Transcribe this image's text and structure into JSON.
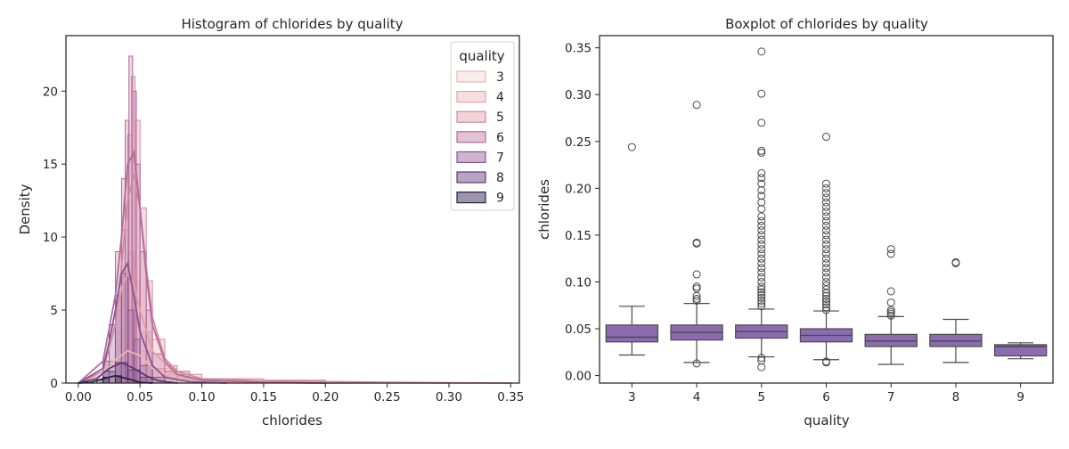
{
  "chart_data": [
    {
      "type": "histogram",
      "title": "Histogram of chlorides by quality",
      "xlabel": "chlorides",
      "ylabel": "Density",
      "xlim": [
        -0.01,
        0.357
      ],
      "ylim": [
        0,
        23.8
      ],
      "xticks": [
        0.0,
        0.05,
        0.1,
        0.15,
        0.2,
        0.25,
        0.3,
        0.35
      ],
      "xtick_labels": [
        "0.00",
        "0.05",
        "0.10",
        "0.15",
        "0.20",
        "0.25",
        "0.30",
        "0.35"
      ],
      "yticks": [
        0,
        5,
        10,
        15,
        20
      ],
      "ytick_labels": [
        "0",
        "5",
        "10",
        "15",
        "20"
      ],
      "legend_title": "quality",
      "legend_position": "top-right",
      "series": [
        {
          "name": "3",
          "color": "#f3dcd6",
          "edge": "#e8b7ad",
          "bins": [
            [
              0.02,
              0.03,
              1.2
            ],
            [
              0.03,
              0.04,
              3.5
            ],
            [
              0.04,
              0.05,
              4.0
            ],
            [
              0.05,
              0.06,
              2.2
            ],
            [
              0.06,
              0.07,
              1.0
            ],
            [
              0.07,
              0.08,
              0.6
            ]
          ],
          "kde_x": [
            0.0,
            0.02,
            0.03,
            0.04,
            0.05,
            0.06,
            0.08,
            0.12,
            0.2,
            0.25,
            0.3
          ],
          "kde_y": [
            0,
            0.6,
            1.6,
            2.2,
            1.9,
            1.0,
            0.3,
            0.05,
            0,
            0.02,
            0
          ]
        },
        {
          "name": "4",
          "color": "#ecc1c0",
          "edge": "#e2a2a5",
          "bins": [
            [
              0.02,
              0.03,
              1.5
            ],
            [
              0.03,
              0.035,
              5.0
            ],
            [
              0.035,
              0.04,
              8.0
            ],
            [
              0.04,
              0.045,
              9.0
            ],
            [
              0.045,
              0.05,
              7.0
            ],
            [
              0.05,
              0.06,
              3.5
            ],
            [
              0.06,
              0.08,
              1.0
            ],
            [
              0.08,
              0.1,
              0.3
            ]
          ],
          "kde_x": [
            0.0,
            0.02,
            0.03,
            0.035,
            0.04,
            0.045,
            0.05,
            0.06,
            0.08,
            0.1,
            0.15,
            0.2
          ],
          "kde_y": [
            0,
            1.0,
            4.0,
            6.5,
            7.5,
            6.8,
            5.0,
            2.2,
            0.5,
            0.2,
            0.05,
            0
          ]
        },
        {
          "name": "5",
          "color": "#e3a8b4",
          "edge": "#d48a9c",
          "bins": [
            [
              0.035,
              0.04,
              10.5
            ],
            [
              0.04,
              0.043,
              17.0
            ],
            [
              0.043,
              0.046,
              21.0
            ],
            [
              0.046,
              0.05,
              18.0
            ],
            [
              0.05,
              0.055,
              12.0
            ],
            [
              0.055,
              0.06,
              7.0
            ],
            [
              0.06,
              0.07,
              3.0
            ],
            [
              0.07,
              0.08,
              1.2
            ],
            [
              0.08,
              0.1,
              0.6
            ],
            [
              0.1,
              0.15,
              0.3
            ],
            [
              0.15,
              0.2,
              0.2
            ]
          ],
          "kde_x": [
            0.0,
            0.02,
            0.03,
            0.035,
            0.04,
            0.045,
            0.05,
            0.055,
            0.06,
            0.07,
            0.08,
            0.1,
            0.15,
            0.2,
            0.25,
            0.3,
            0.35
          ],
          "kde_y": [
            0,
            0.8,
            4.0,
            8.0,
            12.5,
            14.3,
            12.0,
            8.0,
            4.5,
            1.7,
            0.8,
            0.3,
            0.15,
            0.1,
            0.05,
            0.02,
            0
          ]
        },
        {
          "name": "6",
          "color": "#c986ad",
          "edge": "#b46a9c",
          "bins": [
            [
              0.03,
              0.035,
              9.0
            ],
            [
              0.035,
              0.038,
              14.0
            ],
            [
              0.038,
              0.041,
              18.0
            ],
            [
              0.041,
              0.044,
              22.4
            ],
            [
              0.044,
              0.047,
              20.0
            ],
            [
              0.047,
              0.05,
              15.0
            ],
            [
              0.05,
              0.055,
              9.0
            ],
            [
              0.055,
              0.06,
              5.0
            ],
            [
              0.06,
              0.07,
              2.0
            ],
            [
              0.07,
              0.09,
              0.8
            ]
          ],
          "kde_x": [
            0.0,
            0.02,
            0.03,
            0.035,
            0.04,
            0.045,
            0.05,
            0.055,
            0.06,
            0.07,
            0.08,
            0.1,
            0.15,
            0.2
          ],
          "kde_y": [
            0,
            1.5,
            6.0,
            10.0,
            15.0,
            15.8,
            12.0,
            7.5,
            4.0,
            1.5,
            0.6,
            0.2,
            0.05,
            0
          ]
        },
        {
          "name": "7",
          "color": "#a06aa6",
          "edge": "#8a5596",
          "bins": [
            [
              0.02,
              0.025,
              1.5
            ],
            [
              0.025,
              0.03,
              4.0
            ],
            [
              0.03,
              0.035,
              6.0
            ],
            [
              0.035,
              0.04,
              7.5
            ],
            [
              0.04,
              0.045,
              5.0
            ],
            [
              0.045,
              0.05,
              3.0
            ],
            [
              0.05,
              0.06,
              1.2
            ],
            [
              0.06,
              0.07,
              0.4
            ]
          ],
          "kde_x": [
            0.0,
            0.02,
            0.025,
            0.03,
            0.035,
            0.04,
            0.045,
            0.05,
            0.06,
            0.07,
            0.09,
            0.12
          ],
          "kde_y": [
            0,
            1.0,
            2.8,
            5.0,
            7.5,
            8.2,
            6.0,
            3.5,
            1.2,
            0.4,
            0.1,
            0
          ]
        },
        {
          "name": "8",
          "color": "#6d4a86",
          "edge": "#5a3b74",
          "bins": [
            [
              0.02,
              0.03,
              0.8
            ],
            [
              0.03,
              0.04,
              1.4
            ],
            [
              0.04,
              0.05,
              0.9
            ],
            [
              0.05,
              0.06,
              0.4
            ]
          ],
          "kde_x": [
            0.0,
            0.015,
            0.025,
            0.035,
            0.045,
            0.055,
            0.065,
            0.08
          ],
          "kde_y": [
            0,
            0.3,
            1.0,
            1.4,
            1.0,
            0.5,
            0.15,
            0
          ]
        },
        {
          "name": "9",
          "color": "#3a2a56",
          "edge": "#2d2044",
          "bins": [
            [
              0.015,
              0.02,
              0.2
            ],
            [
              0.02,
              0.025,
              0.4
            ],
            [
              0.03,
              0.035,
              0.5
            ]
          ],
          "kde_x": [
            0.0,
            0.01,
            0.02,
            0.03,
            0.04,
            0.05,
            0.06
          ],
          "kde_y": [
            0,
            0.05,
            0.3,
            0.5,
            0.3,
            0.05,
            0
          ]
        }
      ]
    },
    {
      "type": "box",
      "title": "Boxplot of chlorides by quality",
      "xlabel": "quality",
      "ylabel": "chlorides",
      "ylim": [
        -0.008,
        0.363
      ],
      "yticks": [
        0.0,
        0.05,
        0.1,
        0.15,
        0.2,
        0.25,
        0.3,
        0.35
      ],
      "ytick_labels": [
        "0.00",
        "0.05",
        "0.10",
        "0.15",
        "0.20",
        "0.25",
        "0.30",
        "0.35"
      ],
      "categories": [
        "3",
        "4",
        "5",
        "6",
        "7",
        "8",
        "9"
      ],
      "box_color": "#8c6bb1",
      "boxes": [
        {
          "q1": 0.036,
          "median": 0.041,
          "q3": 0.054,
          "whislo": 0.022,
          "whishi": 0.074,
          "fliers": [
            0.244
          ]
        },
        {
          "q1": 0.038,
          "median": 0.046,
          "q3": 0.054,
          "whislo": 0.014,
          "whishi": 0.077,
          "fliers": [
            0.013,
            0.08,
            0.082,
            0.085,
            0.093,
            0.095,
            0.108,
            0.141,
            0.142,
            0.289
          ]
        },
        {
          "q1": 0.04,
          "median": 0.047,
          "q3": 0.054,
          "whislo": 0.02,
          "whishi": 0.071,
          "fliers": [
            0.009,
            0.016,
            0.019,
            0.074,
            0.077,
            0.08,
            0.083,
            0.086,
            0.089,
            0.092,
            0.095,
            0.1,
            0.105,
            0.11,
            0.115,
            0.12,
            0.125,
            0.13,
            0.135,
            0.14,
            0.145,
            0.15,
            0.155,
            0.16,
            0.165,
            0.17,
            0.178,
            0.185,
            0.192,
            0.198,
            0.205,
            0.211,
            0.216,
            0.238,
            0.24,
            0.27,
            0.301,
            0.346
          ]
        },
        {
          "q1": 0.036,
          "median": 0.043,
          "q3": 0.05,
          "whislo": 0.017,
          "whishi": 0.069,
          "fliers": [
            0.014,
            0.015,
            0.07,
            0.073,
            0.076,
            0.079,
            0.082,
            0.085,
            0.088,
            0.092,
            0.096,
            0.1,
            0.105,
            0.11,
            0.115,
            0.12,
            0.125,
            0.13,
            0.135,
            0.14,
            0.145,
            0.15,
            0.155,
            0.16,
            0.165,
            0.17,
            0.175,
            0.18,
            0.185,
            0.19,
            0.195,
            0.2,
            0.205,
            0.255
          ]
        },
        {
          "q1": 0.031,
          "median": 0.037,
          "q3": 0.044,
          "whislo": 0.012,
          "whishi": 0.063,
          "fliers": [
            0.064,
            0.066,
            0.068,
            0.07,
            0.078,
            0.09,
            0.13,
            0.135
          ]
        },
        {
          "q1": 0.031,
          "median": 0.037,
          "q3": 0.044,
          "whislo": 0.014,
          "whishi": 0.06,
          "fliers": [
            0.12,
            0.121
          ]
        },
        {
          "q1": 0.021,
          "median": 0.031,
          "q3": 0.033,
          "whislo": 0.018,
          "whishi": 0.035,
          "fliers": []
        }
      ]
    }
  ]
}
